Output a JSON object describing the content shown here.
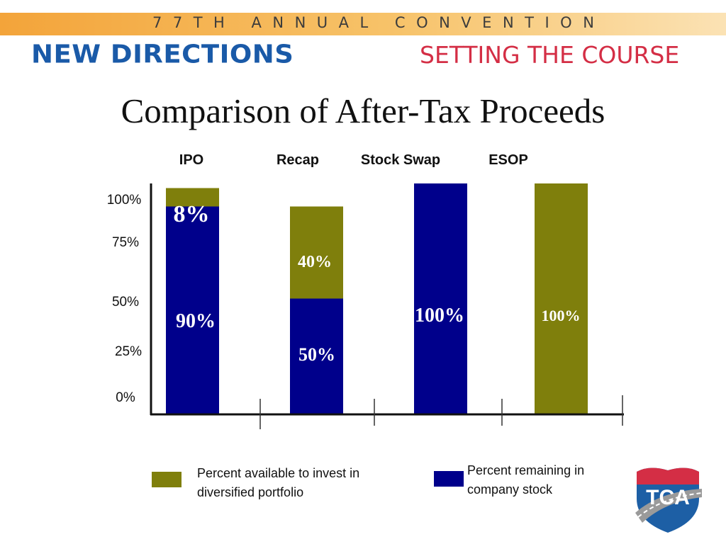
{
  "header": {
    "banner_text": "77TH ANNUAL CONVENTION",
    "brand_main": "NEW DIRECTIONS",
    "brand_sub": "SETTING THE COURSE",
    "banner_color": "#f3a43a",
    "brand_main_color": "#1a5aa8",
    "brand_sub_color": "#d42e45"
  },
  "title": "Comparison of After-Tax Proceeds",
  "logo": {
    "text": "TCA"
  },
  "legend": {
    "diversified": {
      "label": "Percent available to invest in diversified portfolio",
      "color": "#7f7f0c"
    },
    "company_stock": {
      "label": "Percent remaining in company stock",
      "color": "#00008b"
    }
  },
  "chart_data": {
    "type": "bar",
    "stacked": true,
    "categories": [
      "IPO",
      "Recap",
      "Stock Swap",
      "ESOP"
    ],
    "y_tick_labels": [
      "0%",
      "25%",
      "50%",
      "75%",
      "100%"
    ],
    "series": [
      {
        "name": "Percent remaining in company stock",
        "color": "#00008b",
        "values": [
          90,
          50,
          100,
          0
        ],
        "labels": [
          "90%",
          "50%",
          "100%",
          ""
        ]
      },
      {
        "name": "Percent available to invest in diversified portfolio",
        "color": "#7f7f0c",
        "values": [
          8,
          40,
          0,
          100
        ],
        "labels": [
          "8%",
          "40%",
          "",
          "100%"
        ]
      }
    ],
    "title": "Comparison of After-Tax Proceeds",
    "xlabel": "",
    "ylabel": "",
    "grid": false,
    "legend_position": "bottom"
  }
}
